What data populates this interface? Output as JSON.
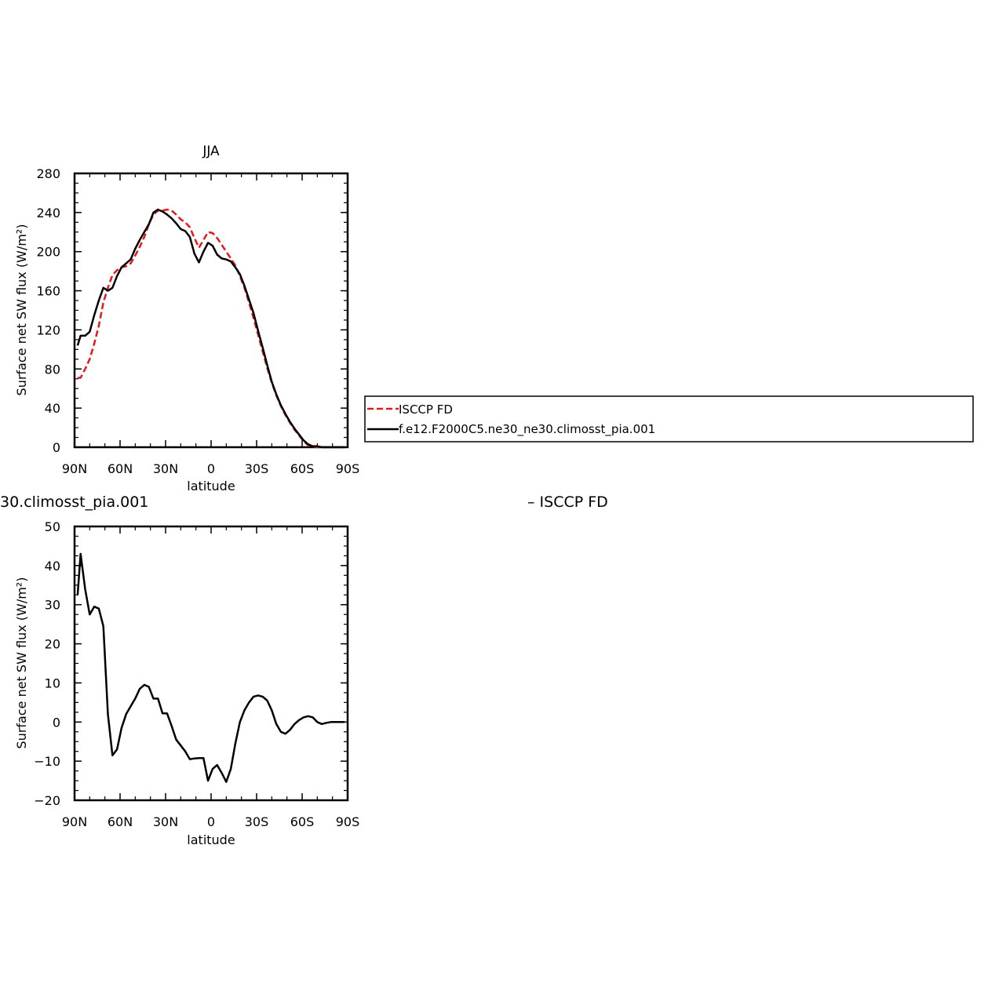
{
  "chart_data": [
    {
      "type": "line",
      "title": "JJA",
      "xlabel": "latitude",
      "ylabel": "Surface net SW flux (W/m²)",
      "xlim": [
        90,
        -90
      ],
      "ylim": [
        0,
        280
      ],
      "xticks": [
        90,
        60,
        30,
        0,
        -30,
        -60,
        -90
      ],
      "xtick_labels": [
        "90N",
        "60N",
        "30N",
        "0",
        "30S",
        "60S",
        "90S"
      ],
      "yticks": [
        0,
        40,
        80,
        120,
        160,
        200,
        240,
        280
      ],
      "ytick_labels": [
        "0",
        "40",
        "80",
        "120",
        "160",
        "200",
        "240",
        "280"
      ],
      "legend": {
        "placement": "right",
        "entries": [
          "ISCCP FD",
          "f.e12.F2000C5.ne30_ne30.climosst_pia.001"
        ]
      },
      "series": [
        {
          "name": "ISCCP FD",
          "color": "#e8181a",
          "dash": "dashed",
          "x": [
            88,
            86,
            83,
            80,
            77,
            74,
            71,
            68,
            65,
            62,
            59,
            56,
            53,
            50,
            47,
            44,
            41,
            38,
            35,
            32,
            29,
            26,
            23,
            20,
            17,
            14,
            11,
            8,
            5,
            2,
            -1,
            -4,
            -7,
            -10,
            -13,
            -16,
            -19,
            -22,
            -25,
            -28,
            -31,
            -34,
            -37,
            -40,
            -43,
            -46,
            -49,
            -52,
            -55,
            -58,
            -61,
            -64,
            -67,
            -70,
            -73,
            -76,
            -79,
            -82,
            -85,
            -88
          ],
          "y": [
            71,
            71,
            80,
            90,
            106,
            124,
            148,
            163,
            176,
            181,
            184,
            185,
            188,
            196,
            205,
            215,
            228,
            238,
            242,
            242,
            243,
            242,
            238,
            233,
            230,
            225,
            214,
            204,
            212,
            220,
            219,
            214,
            207,
            200,
            193,
            186,
            175,
            163,
            148,
            132,
            115,
            98,
            81,
            66,
            53,
            42,
            33,
            25,
            18,
            12,
            6,
            2,
            1,
            0,
            0,
            0,
            0,
            0,
            0,
            0
          ]
        },
        {
          "name": "f.e12.F2000C5.ne30_ne30.climosst_pia.001",
          "color": "#000000",
          "dash": "solid",
          "x": [
            88,
            86,
            83,
            80,
            77,
            74,
            71,
            68,
            65,
            62,
            59,
            56,
            53,
            50,
            47,
            44,
            41,
            38,
            35,
            32,
            29,
            26,
            23,
            20,
            17,
            14,
            11,
            8,
            5,
            2,
            -1,
            -4,
            -7,
            -10,
            -13,
            -16,
            -19,
            -22,
            -25,
            -28,
            -31,
            -34,
            -37,
            -40,
            -43,
            -46,
            -49,
            -52,
            -55,
            -58,
            -61,
            -64,
            -67,
            -70,
            -73,
            -76,
            -79,
            -82,
            -85,
            -88
          ],
          "y": [
            104,
            114,
            114,
            118,
            135,
            150,
            163,
            160,
            163,
            175,
            184,
            188,
            192,
            203,
            212,
            220,
            228,
            240,
            243,
            241,
            238,
            234,
            229,
            223,
            221,
            215,
            198,
            189,
            200,
            209,
            206,
            197,
            193,
            192,
            190,
            184,
            177,
            165,
            151,
            137,
            119,
            102,
            84,
            67,
            54,
            43,
            34,
            26,
            19,
            13,
            7,
            3,
            1,
            1,
            0,
            0,
            0,
            0,
            0,
            0
          ]
        }
      ]
    },
    {
      "type": "line",
      "title": "30.climosst_pia.001",
      "xlabel": "latitude",
      "ylabel": "Surface net SW flux (W/m²)",
      "xlim": [
        90,
        -90
      ],
      "ylim": [
        -20,
        50
      ],
      "xticks": [
        90,
        60,
        30,
        0,
        -30,
        -60,
        -90
      ],
      "xtick_labels": [
        "90N",
        "60N",
        "30N",
        "0",
        "30S",
        "60S",
        "90S"
      ],
      "yticks": [
        -20,
        -10,
        0,
        10,
        20,
        30,
        40,
        50
      ],
      "ytick_labels": [
        "−20",
        "−10",
        "0",
        "10",
        "20",
        "30",
        "40",
        "50"
      ],
      "right_title": "– ISCCP FD",
      "series": [
        {
          "color": "#000000",
          "dash": "solid",
          "x": [
            88,
            86,
            83,
            80,
            77,
            74,
            71,
            68,
            65,
            62,
            59,
            56,
            53,
            50,
            47,
            44,
            41,
            38,
            35,
            32,
            29,
            26,
            23,
            20,
            17,
            14,
            11,
            8,
            5,
            2,
            -1,
            -4,
            -7,
            -10,
            -13,
            -16,
            -19,
            -22,
            -25,
            -28,
            -31,
            -34,
            -37,
            -40,
            -43,
            -46,
            -49,
            -52,
            -55,
            -58,
            -61,
            -64,
            -67,
            -70,
            -73,
            -76,
            -79,
            -82,
            -85,
            -88
          ],
          "y": [
            32.5,
            43,
            34,
            27.5,
            29.5,
            29,
            24.5,
            2,
            -8.5,
            -7,
            -1.5,
            2,
            4,
            6,
            8.5,
            9.5,
            9,
            6,
            6,
            2.2,
            2.2,
            -1,
            -4.5,
            -6,
            -7.5,
            -9.5,
            -9.3,
            -9.2,
            -9.2,
            -15,
            -12,
            -11,
            -13,
            -15.3,
            -12,
            -5.5,
            0,
            3,
            5,
            6.5,
            6.8,
            6.5,
            5.5,
            3,
            -0.5,
            -2.5,
            -3,
            -2,
            -0.5,
            0.5,
            1.2,
            1.5,
            1.2,
            0,
            -0.5,
            -0.2,
            0,
            0,
            0,
            0
          ]
        }
      ]
    }
  ]
}
